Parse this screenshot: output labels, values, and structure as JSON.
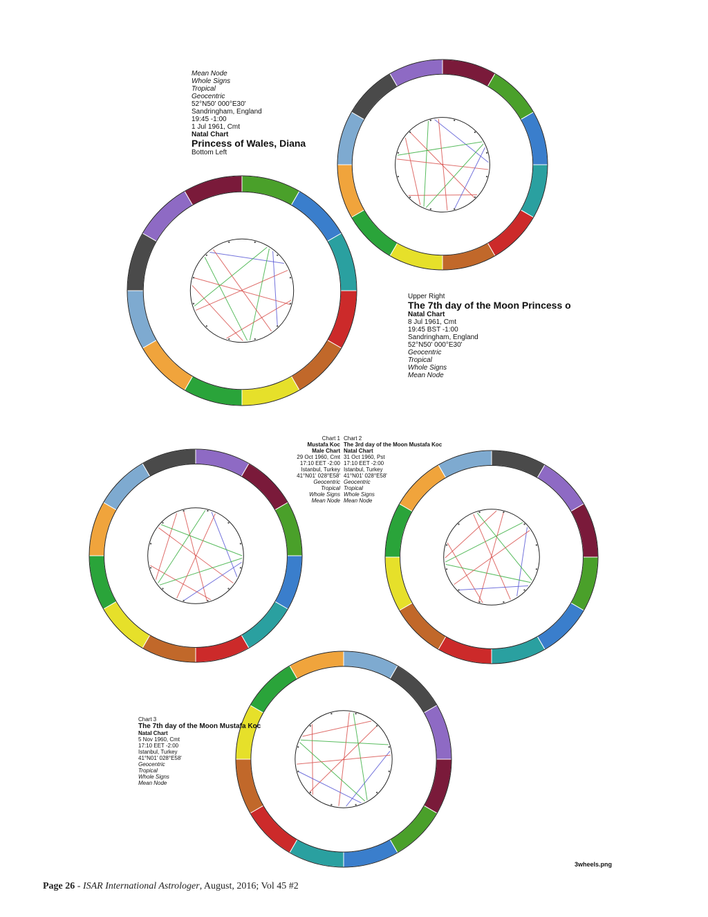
{
  "zodiac_colors": [
    "#cc2a2a",
    "#c1682a",
    "#e6e02a",
    "#2aa43a",
    "#f0a43c",
    "#7eaad0",
    "#4a4a4a",
    "#8e6ac4",
    "#7a1a3a",
    "#4aa02a",
    "#3a7ecc",
    "#2aa0a0"
  ],
  "chart_a": {
    "lines": [
      "Mean Node",
      "Whole Signs",
      "Tropical",
      "Geocentric",
      "52°N50' 000°E30'",
      "Sandringham, England",
      "19:45 -1:00",
      "1 Jul 1961, Cmt",
      "Natal Chart",
      "Princess of Wales, Diana",
      "Bottom Left"
    ]
  },
  "chart_b": {
    "lines": [
      "Upper Right",
      "The 7th day of the Moon Princess o",
      "Natal Chart",
      "8 Jul 1961, Cmt",
      "19:45  BST -1:00",
      "Sandringham, England",
      "52°N50' 000°E30'",
      "Geocentric",
      "Tropical",
      "Whole Signs",
      "Mean Node"
    ]
  },
  "chart_c": {
    "col1": [
      "Chart 1",
      "Mustafa Koc",
      "Male Chart",
      "29 Oct 1960, Cmt",
      "17:10  EET -2:00",
      "Istanbul, Turkey",
      "41°N01' 028°E58'",
      "Geocentric",
      "Tropical",
      "Whole Signs",
      "Mean Node"
    ],
    "col2": [
      "Chart 2",
      "The 3rd day of the Moon Mustafa Koc",
      "Natal Chart",
      "31 Oct 1960, Pst",
      "17:10  EET -2:00",
      "Istanbul, Turkey",
      "41°N01' 028°E58'",
      "Geocentric",
      "Tropical",
      "Whole Signs",
      "Mean Node"
    ]
  },
  "chart_d": {
    "lines": [
      "Chart 3",
      "The 7th day of the Moon Mustafa Koc",
      "Natal Chart",
      "5 Nov 1960, Cmt",
      "17:10  EET -2:00",
      "Istanbul, Turkey",
      "41°N01' 028°E58'",
      "Geocentric",
      "Tropical",
      "Whole Signs",
      "Mean Node"
    ]
  },
  "file_name": "3wheels.png",
  "footer": {
    "page": "Page 26",
    "sep": " - ",
    "journal": "ISAR International Astrologer",
    "rest": ", August, 2016; Vol 45 #2"
  }
}
